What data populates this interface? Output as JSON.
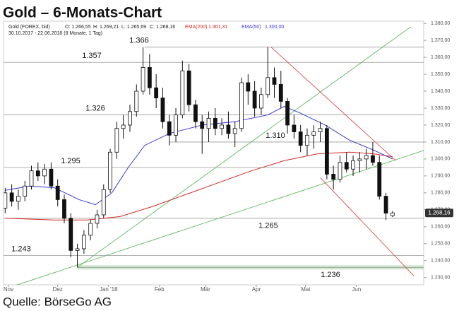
{
  "chart_data": {
    "type": "candlestick",
    "title": "Gold – 6-Monats-Chart",
    "instrument": "Gold (FOREX, bid)",
    "ohlc_labels": [
      "O: 1.266,55",
      "H: 1.269,21",
      "L: 1.265,69",
      "C: 1.268,16"
    ],
    "period": "30.10.2017 - 22.06.2018 (8 Monate, 1 Tag)",
    "source": "Quelle: BörseGo AG",
    "x": [
      0,
      4,
      8,
      12,
      16,
      20,
      24,
      28,
      32,
      36,
      40,
      44,
      48,
      52,
      56,
      60,
      64,
      68,
      72,
      76,
      80,
      84,
      88,
      92,
      96,
      100,
      104,
      108,
      112,
      116,
      120,
      124,
      128,
      132,
      136,
      140,
      144,
      148,
      152,
      156,
      160,
      164,
      168,
      172,
      176,
      180,
      184,
      188,
      192,
      196,
      200,
      204,
      208,
      212,
      216,
      220,
      224,
      228,
      232,
      236
    ],
    "open": [
      1.271,
      1.28,
      1.275,
      1.278,
      1.284,
      1.293,
      1.29,
      1.294,
      1.284,
      1.276,
      1.265,
      1.246,
      1.247,
      1.255,
      1.262,
      1.267,
      1.282,
      1.304,
      1.318,
      1.32,
      1.328,
      1.34,
      1.354,
      1.342,
      1.336,
      1.322,
      1.314,
      1.326,
      1.352,
      1.332,
      1.322,
      1.318,
      1.324,
      1.318,
      1.32,
      1.315,
      1.318,
      1.345,
      1.34,
      1.33,
      1.338,
      1.348,
      1.344,
      1.334,
      1.32,
      1.316,
      1.308,
      1.314,
      1.316,
      1.318,
      1.291,
      1.288,
      1.298,
      1.294,
      1.299,
      1.3,
      1.302,
      1.298,
      1.278,
      1.26655
    ],
    "high": [
      1.283,
      1.285,
      1.282,
      1.287,
      1.296,
      1.298,
      1.297,
      1.298,
      1.288,
      1.279,
      1.268,
      1.25,
      1.258,
      1.264,
      1.27,
      1.285,
      1.306,
      1.322,
      1.326,
      1.332,
      1.344,
      1.366,
      1.362,
      1.35,
      1.342,
      1.326,
      1.33,
      1.358,
      1.356,
      1.335,
      1.326,
      1.328,
      1.33,
      1.324,
      1.328,
      1.322,
      1.348,
      1.35,
      1.346,
      1.342,
      1.366,
      1.354,
      1.352,
      1.336,
      1.326,
      1.32,
      1.318,
      1.32,
      1.322,
      1.32,
      1.296,
      1.302,
      1.304,
      1.302,
      1.304,
      1.306,
      1.31,
      1.302,
      1.28,
      1.26921
    ],
    "low": [
      1.268,
      1.272,
      1.27,
      1.275,
      1.282,
      1.287,
      1.285,
      1.282,
      1.272,
      1.262,
      1.242,
      1.236,
      1.244,
      1.252,
      1.259,
      1.265,
      1.28,
      1.3,
      1.312,
      1.316,
      1.325,
      1.338,
      1.338,
      1.33,
      1.318,
      1.308,
      1.31,
      1.324,
      1.328,
      1.318,
      1.303,
      1.31,
      1.314,
      1.314,
      1.312,
      1.307,
      1.316,
      1.332,
      1.325,
      1.326,
      1.336,
      1.336,
      1.33,
      1.315,
      1.312,
      1.304,
      1.302,
      1.306,
      1.31,
      1.288,
      1.282,
      1.286,
      1.292,
      1.29,
      1.292,
      1.294,
      1.296,
      1.276,
      1.264,
      1.26569
    ],
    "close": [
      1.28,
      1.275,
      1.278,
      1.284,
      1.293,
      1.29,
      1.294,
      1.284,
      1.276,
      1.265,
      1.246,
      1.247,
      1.255,
      1.262,
      1.267,
      1.282,
      1.304,
      1.318,
      1.32,
      1.328,
      1.34,
      1.354,
      1.342,
      1.336,
      1.322,
      1.314,
      1.326,
      1.352,
      1.332,
      1.322,
      1.318,
      1.324,
      1.318,
      1.32,
      1.315,
      1.318,
      1.345,
      1.34,
      1.33,
      1.338,
      1.348,
      1.344,
      1.334,
      1.32,
      1.316,
      1.308,
      1.314,
      1.316,
      1.318,
      1.291,
      1.288,
      1.298,
      1.294,
      1.299,
      1.3,
      1.302,
      1.298,
      1.278,
      1.268,
      1.26816
    ],
    "last_label": "1.268,16",
    "indicators": [
      {
        "name": "EMA(200)",
        "value_label": "1.301,31",
        "color": "#d42a2a",
        "x": [
          0,
          30,
          50,
          70,
          90,
          110,
          130,
          150,
          170,
          190,
          210,
          225,
          236
        ],
        "values": [
          1.265,
          1.264,
          1.264,
          1.266,
          1.272,
          1.279,
          1.286,
          1.293,
          1.299,
          1.303,
          1.304,
          1.303,
          1.30131
        ]
      },
      {
        "name": "EMA(50)",
        "value_label": "1.300,00",
        "color": "#3a3ad0",
        "x": [
          0,
          15,
          30,
          45,
          55,
          65,
          75,
          85,
          100,
          120,
          140,
          160,
          170,
          180,
          195,
          210,
          225,
          236
        ],
        "values": [
          1.2815,
          1.284,
          1.283,
          1.276,
          1.273,
          1.28,
          1.295,
          1.308,
          1.315,
          1.32,
          1.322,
          1.326,
          1.331,
          1.327,
          1.32,
          1.311,
          1.305,
          1.3
        ]
      }
    ],
    "levels": [
      {
        "value": 1.366,
        "label": "1.366",
        "start": 85
      },
      {
        "value": 1.357,
        "label": "1.357",
        "start": -1
      },
      {
        "value": 1.326,
        "label": "1.326",
        "start": -1
      },
      {
        "value": 1.31,
        "label": "1.310",
        "start": 100
      },
      {
        "value": 1.295,
        "label": "1.295",
        "start": -1
      },
      {
        "value": 1.265,
        "label": "1.265",
        "start": -1
      },
      {
        "value": 1.243,
        "label": "1.243",
        "start": -1
      },
      {
        "value": 1.236,
        "label": "1.236",
        "start": 44,
        "band_color": "#cfe8cf"
      }
    ],
    "trendlines": [
      {
        "color": "#5cb85c",
        "x": [
          44,
          250
        ],
        "y": [
          1.236,
          1.38
        ]
      },
      {
        "color": "#5cb85c",
        "x": [
          -1,
          255
        ],
        "y": [
          1.223,
          1.305
        ]
      },
      {
        "color": "#d84a4a",
        "x": [
          162,
          238
        ],
        "y": [
          1.366,
          1.299
        ]
      },
      {
        "color": "#d84a4a",
        "x": [
          192,
          249
        ],
        "y": [
          1.289,
          1.231
        ]
      }
    ],
    "xlim": [
      -1,
      255
    ],
    "ylim": [
      1.2257,
      1.3813
    ],
    "xticks": [
      {
        "value": 2,
        "label": "Nov"
      },
      {
        "value": 32,
        "label": "Dez"
      },
      {
        "value": 63,
        "label": "Jan '18"
      },
      {
        "value": 94,
        "label": "Feb"
      },
      {
        "value": 122,
        "label": "Mär"
      },
      {
        "value": 153,
        "label": "Apr"
      },
      {
        "value": 183,
        "label": "Mai"
      },
      {
        "value": 214,
        "label": "Jun"
      }
    ],
    "yticks": [
      {
        "value": 1.23,
        "label": "1.230,00"
      },
      {
        "value": 1.24,
        "label": "1.240,00"
      },
      {
        "value": 1.25,
        "label": "1.250,00"
      },
      {
        "value": 1.26,
        "label": "1.260,00"
      },
      {
        "value": 1.27,
        "label": "1.270,00"
      },
      {
        "value": 1.28,
        "label": "1.280,00"
      },
      {
        "value": 1.29,
        "label": "1.290,00"
      },
      {
        "value": 1.3,
        "label": "1.300,00"
      },
      {
        "value": 1.31,
        "label": "1.310,00"
      },
      {
        "value": 1.32,
        "label": "1.320,00"
      },
      {
        "value": 1.33,
        "label": "1.330,00"
      },
      {
        "value": 1.34,
        "label": "1.340,00"
      },
      {
        "value": 1.35,
        "label": "1.350,00"
      },
      {
        "value": 1.36,
        "label": "1.360,00"
      },
      {
        "value": 1.37,
        "label": "1.370,00"
      },
      {
        "value": 1.38,
        "label": "1.380,00"
      }
    ]
  }
}
